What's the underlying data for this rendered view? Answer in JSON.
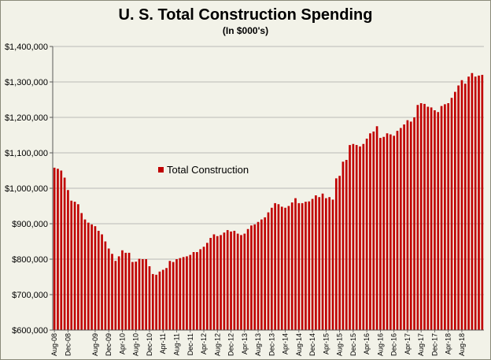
{
  "chart_data": {
    "type": "bar",
    "title": "U. S. Total Construction Spending",
    "subtitle": "(In $000's)",
    "legend": "Total Construction",
    "legend_position": "left-middle",
    "grid": true,
    "bar_color": "#c00000",
    "background": "#f2f2e8",
    "ylim": [
      600000,
      1400000
    ],
    "yticks": [
      600000,
      700000,
      800000,
      900000,
      1000000,
      1100000,
      1200000,
      1300000,
      1400000
    ],
    "ytick_labels": [
      "$600,000",
      "$700,000",
      "$800,000",
      "$900,000",
      "$1,000,000",
      "$1,100,000",
      "$1,200,000",
      "$1,300,000",
      "$1,400,000"
    ],
    "x_labels": [
      {
        "index": 0,
        "label": "Aug-08"
      },
      {
        "index": 4,
        "label": "Dec-08"
      },
      {
        "index": 12,
        "label": "Aug-09"
      },
      {
        "index": 16,
        "label": "Dec-09"
      },
      {
        "index": 20,
        "label": "Apr-10"
      },
      {
        "index": 24,
        "label": "Aug-10"
      },
      {
        "index": 28,
        "label": "Dec-10"
      },
      {
        "index": 32,
        "label": "Apr-11"
      },
      {
        "index": 36,
        "label": "Aug-11"
      },
      {
        "index": 40,
        "label": "Dec-11"
      },
      {
        "index": 44,
        "label": "Apr-12"
      },
      {
        "index": 48,
        "label": "Aug-12"
      },
      {
        "index": 52,
        "label": "Dec-12"
      },
      {
        "index": 56,
        "label": "Apr-13"
      },
      {
        "index": 60,
        "label": "Aug-13"
      },
      {
        "index": 64,
        "label": "Dec-13"
      },
      {
        "index": 68,
        "label": "Apr-14"
      },
      {
        "index": 72,
        "label": "Aug-14"
      },
      {
        "index": 76,
        "label": "Dec-14"
      },
      {
        "index": 80,
        "label": "Apr-15"
      },
      {
        "index": 84,
        "label": "Aug-15"
      },
      {
        "index": 88,
        "label": "Dec-15"
      },
      {
        "index": 92,
        "label": "Apr-16"
      },
      {
        "index": 96,
        "label": "Aug-16"
      },
      {
        "index": 100,
        "label": "Dec-16"
      },
      {
        "index": 104,
        "label": "Apr-17"
      },
      {
        "index": 108,
        "label": "Aug-17"
      },
      {
        "index": 112,
        "label": "Dec-17"
      },
      {
        "index": 116,
        "label": "Apr-18"
      },
      {
        "index": 120,
        "label": "Aug-18"
      }
    ],
    "values": [
      1058000,
      1055000,
      1050000,
      1030000,
      995000,
      965000,
      962000,
      955000,
      930000,
      912000,
      903000,
      898000,
      893000,
      880000,
      870000,
      850000,
      830000,
      815000,
      795000,
      808000,
      825000,
      818000,
      818000,
      792000,
      793000,
      801000,
      800000,
      800000,
      780000,
      758000,
      756000,
      765000,
      770000,
      775000,
      795000,
      792000,
      800000,
      803000,
      806000,
      808000,
      812000,
      820000,
      820000,
      828000,
      835000,
      846000,
      860000,
      870000,
      865000,
      868000,
      875000,
      882000,
      878000,
      880000,
      872000,
      868000,
      872000,
      885000,
      895000,
      898000,
      905000,
      912000,
      918000,
      932000,
      945000,
      958000,
      955000,
      948000,
      945000,
      950000,
      960000,
      972000,
      958000,
      958000,
      962000,
      963000,
      970000,
      980000,
      975000,
      985000,
      972000,
      975000,
      968000,
      1028000,
      1035000,
      1075000,
      1080000,
      1122000,
      1125000,
      1122000,
      1118000,
      1125000,
      1140000,
      1155000,
      1160000,
      1175000,
      1142000,
      1145000,
      1155000,
      1152000,
      1148000,
      1162000,
      1170000,
      1180000,
      1192000,
      1188000,
      1200000,
      1235000,
      1240000,
      1238000,
      1230000,
      1228000,
      1220000,
      1215000,
      1232000,
      1237000,
      1240000,
      1255000,
      1272000,
      1290000,
      1305000,
      1295000,
      1315000,
      1325000,
      1315000,
      1318000,
      1320000
    ]
  }
}
